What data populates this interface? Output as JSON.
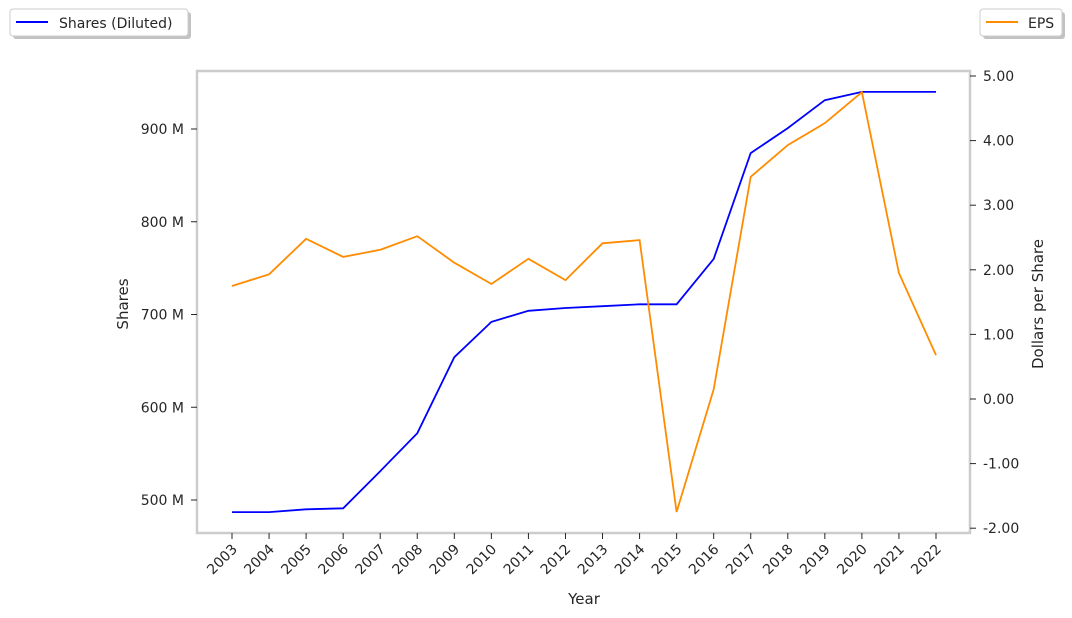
{
  "chart_data": {
    "type": "line",
    "title": "",
    "xlabel": "Year",
    "ylabel_left": "Shares",
    "ylabel_right": "Dollars per Share",
    "categories": [
      "2003",
      "2004",
      "2005",
      "2006",
      "2007",
      "2008",
      "2009",
      "2010",
      "2011",
      "2012",
      "2013",
      "2014",
      "2015",
      "2016",
      "2017",
      "2018",
      "2019",
      "2020",
      "2021",
      "2022"
    ],
    "left_ticks": [
      {
        "value": 500,
        "label": "500 M"
      },
      {
        "value": 600,
        "label": "600 M"
      },
      {
        "value": 700,
        "label": "700 M"
      },
      {
        "value": 800,
        "label": "800 M"
      },
      {
        "value": 900,
        "label": "900 M"
      }
    ],
    "right_ticks": [
      {
        "value": -2,
        "label": "-2.00"
      },
      {
        "value": -1,
        "label": "-1.00"
      },
      {
        "value": 0,
        "label": "0.00"
      },
      {
        "value": 1,
        "label": "1.00"
      },
      {
        "value": 2,
        "label": "2.00"
      },
      {
        "value": 3,
        "label": "3.00"
      },
      {
        "value": 4,
        "label": "4.00"
      },
      {
        "value": 5,
        "label": "5.00"
      }
    ],
    "left_ylim": [
      463,
      962
    ],
    "right_ylim": [
      -2.07,
      5.07
    ],
    "grid": false,
    "series": [
      {
        "name": "Shares (Diluted)",
        "axis": "left",
        "unit": "M",
        "color": "#0000ff",
        "legend": "top-left",
        "values": [
          487,
          487,
          490,
          491,
          531,
          572,
          654,
          692,
          704,
          707,
          709,
          711,
          711,
          760,
          874,
          901,
          931,
          940,
          940,
          940
        ]
      },
      {
        "name": "EPS",
        "axis": "right",
        "color": "#ff8c00",
        "legend": "top-right",
        "values": [
          1.75,
          1.93,
          2.48,
          2.2,
          2.31,
          2.52,
          2.11,
          1.78,
          2.17,
          1.84,
          2.41,
          2.46,
          -1.75,
          0.15,
          3.44,
          3.93,
          4.27,
          4.75,
          1.95,
          0.68
        ]
      }
    ]
  }
}
